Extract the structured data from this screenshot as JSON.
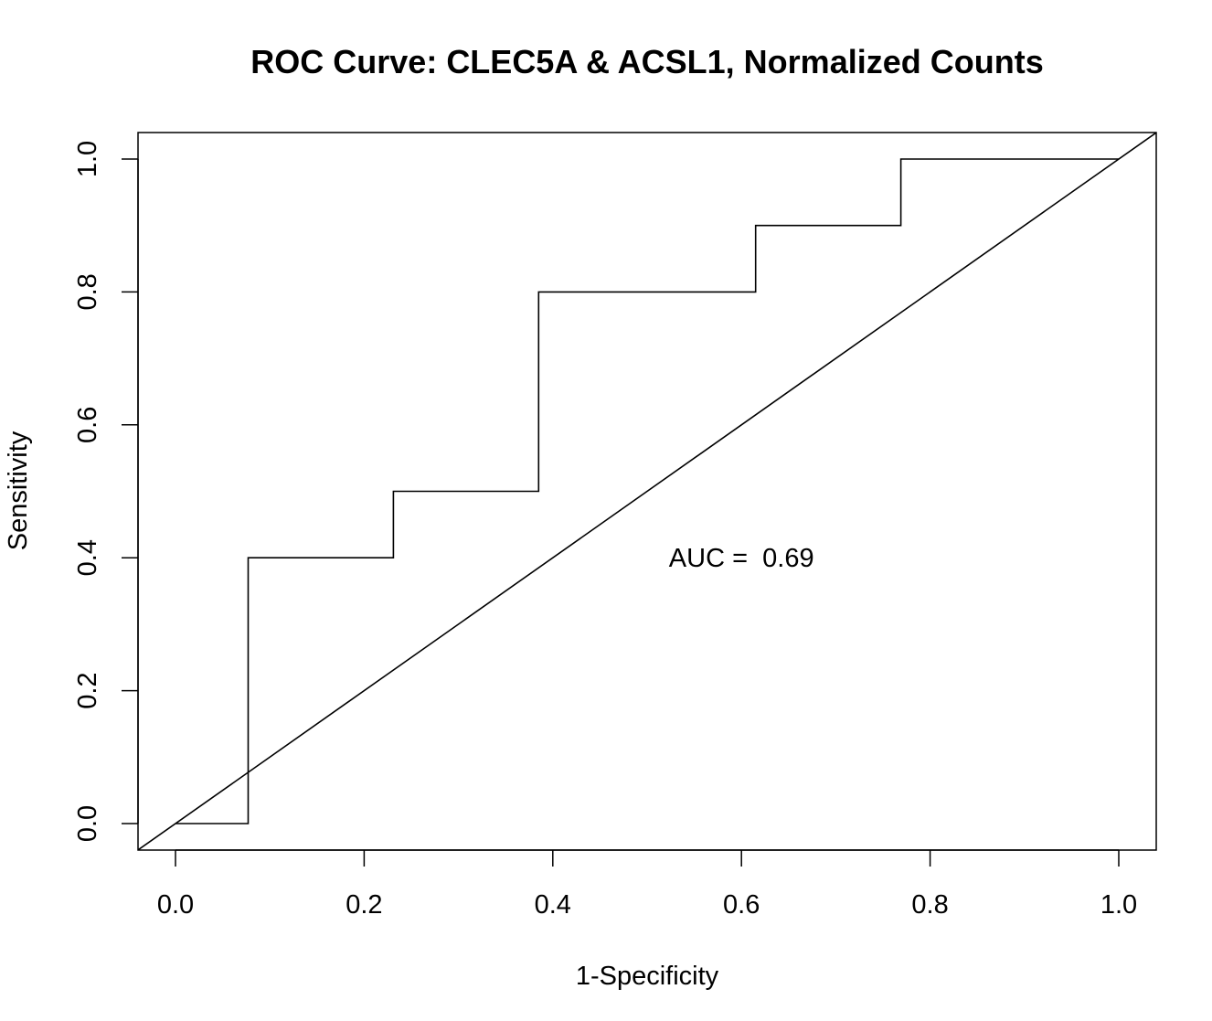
{
  "chart_data": {
    "type": "line",
    "title": "ROC Curve: CLEC5A & ACSL1, Normalized Counts",
    "xlabel": "1-Specificity",
    "ylabel": "Sensitivity",
    "xlim": [
      0.0,
      1.0
    ],
    "ylim": [
      0.0,
      1.0
    ],
    "x_ticks": [
      "0.0",
      "0.2",
      "0.4",
      "0.6",
      "0.8",
      "1.0"
    ],
    "y_ticks": [
      "0.0",
      "0.2",
      "0.4",
      "0.6",
      "0.8",
      "1.0"
    ],
    "grid": false,
    "series": [
      {
        "style": "step",
        "color": "#000000",
        "points": [
          [
            0.0,
            0.0
          ],
          [
            0.077,
            0.0
          ],
          [
            0.077,
            0.4
          ],
          [
            0.231,
            0.4
          ],
          [
            0.231,
            0.5
          ],
          [
            0.385,
            0.5
          ],
          [
            0.385,
            0.8
          ],
          [
            0.615,
            0.8
          ],
          [
            0.615,
            0.9
          ],
          [
            0.769,
            0.9
          ],
          [
            0.769,
            1.0
          ],
          [
            1.0,
            1.0
          ]
        ]
      },
      {
        "style": "reference-diagonal",
        "color": "#000000",
        "points": [
          [
            0.0,
            0.0
          ],
          [
            1.0,
            1.0
          ]
        ]
      }
    ],
    "annotations": [
      {
        "text": "AUC =  0.69",
        "x": 0.6,
        "y": 0.4
      }
    ]
  }
}
